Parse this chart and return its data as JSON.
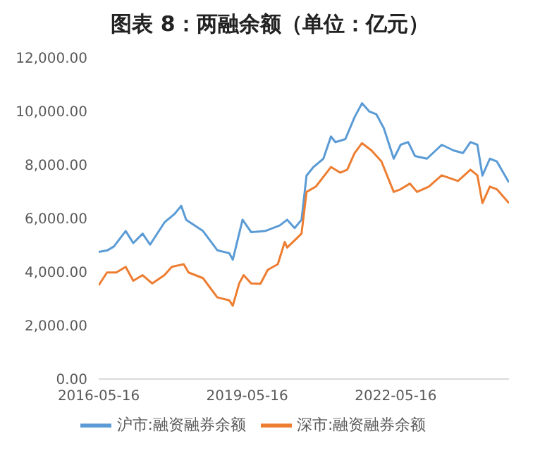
{
  "chart_data": {
    "type": "line",
    "title": "图表 8：两融余额（单位：亿元）",
    "xlim": [
      "2016-05-16",
      "2024-08-28"
    ],
    "xticks": [
      "2016-05-16",
      "2019-05-16",
      "2022-05-16"
    ],
    "ylim": [
      0,
      12000
    ],
    "yticks": [
      {
        "value": 0,
        "label": "0.00"
      },
      {
        "value": 2000,
        "label": "2,000.00"
      },
      {
        "value": 4000,
        "label": "4,000.00"
      },
      {
        "value": 6000,
        "label": "6,000.00"
      },
      {
        "value": 8000,
        "label": "8,000.00"
      },
      {
        "value": 10000,
        "label": "10,000.00"
      },
      {
        "value": 12000,
        "label": "12,000.00"
      }
    ],
    "legend": "bottom",
    "series": [
      {
        "name": "沪市:融资融券余额",
        "color": "#5b9bd5",
        "x": [
          "2016-05-16",
          "2016-07-16",
          "2016-09-05",
          "2016-12-01",
          "2017-01-26",
          "2017-04-05",
          "2017-05-30",
          "2017-09-13",
          "2017-11-25",
          "2018-01-15",
          "2018-02-20",
          "2018-06-24",
          "2018-10-08",
          "2019-01-04",
          "2019-01-30",
          "2019-03-18",
          "2019-04-12",
          "2019-06-14",
          "2019-07-20",
          "2019-09-27",
          "2020-01-12",
          "2020-03-06",
          "2020-04-30",
          "2020-06-20",
          "2020-07-27",
          "2020-09-16",
          "2020-11-28",
          "2021-01-23",
          "2021-02-25",
          "2021-05-09",
          "2021-07-16",
          "2021-09-09",
          "2021-11-03",
          "2021-12-24",
          "2022-02-17",
          "2022-05-01",
          "2022-06-21",
          "2022-08-15",
          "2022-10-05",
          "2023-01-01",
          "2023-04-20",
          "2023-07-16",
          "2023-09-24",
          "2023-11-18",
          "2024-01-08",
          "2024-02-14",
          "2024-04-09",
          "2024-05-30",
          "2024-08-28"
        ],
        "values": [
          4750,
          4800,
          4950,
          5530,
          5080,
          5430,
          5020,
          5850,
          6160,
          6470,
          5950,
          5530,
          4810,
          4700,
          4460,
          5430,
          5950,
          5490,
          5500,
          5530,
          5740,
          5950,
          5640,
          5950,
          7600,
          7920,
          8230,
          9060,
          8850,
          8960,
          9780,
          10300,
          9990,
          9890,
          9370,
          8230,
          8750,
          8850,
          8330,
          8230,
          8750,
          8540,
          8440,
          8850,
          8750,
          7600,
          8230,
          8130,
          7340
        ]
      },
      {
        "name": "深市:融资融券余额",
        "color": "#ed7d31",
        "x": [
          "2016-05-16",
          "2016-07-16",
          "2016-09-23",
          "2016-12-01",
          "2017-01-26",
          "2017-04-05",
          "2017-06-15",
          "2017-09-13",
          "2017-11-06",
          "2018-02-02",
          "2018-03-10",
          "2018-06-24",
          "2018-10-08",
          "2019-01-04",
          "2019-01-30",
          "2019-03-18",
          "2019-04-20",
          "2019-06-14",
          "2019-08-22",
          "2019-10-15",
          "2019-12-28",
          "2020-02-17",
          "2020-03-06",
          "2020-06-20",
          "2020-07-27",
          "2020-10-04",
          "2021-01-23",
          "2021-04-01",
          "2021-05-23",
          "2021-07-16",
          "2021-09-09",
          "2021-11-18",
          "2022-01-30",
          "2022-05-01",
          "2022-06-21",
          "2022-08-28",
          "2022-10-20",
          "2023-01-15",
          "2023-04-20",
          "2023-08-18",
          "2023-11-18",
          "2024-01-08",
          "2024-02-14",
          "2024-04-09",
          "2024-05-30",
          "2024-08-28"
        ],
        "values": [
          3500,
          3980,
          3980,
          4190,
          3670,
          3880,
          3570,
          3880,
          4190,
          4290,
          3980,
          3770,
          3050,
          2940,
          2740,
          3570,
          3880,
          3570,
          3560,
          4080,
          4290,
          5120,
          4910,
          5430,
          6990,
          7190,
          7920,
          7710,
          7820,
          8440,
          8810,
          8540,
          8130,
          6990,
          7090,
          7300,
          6990,
          7190,
          7610,
          7400,
          7820,
          7610,
          6570,
          7190,
          7090,
          6570
        ]
      }
    ]
  }
}
